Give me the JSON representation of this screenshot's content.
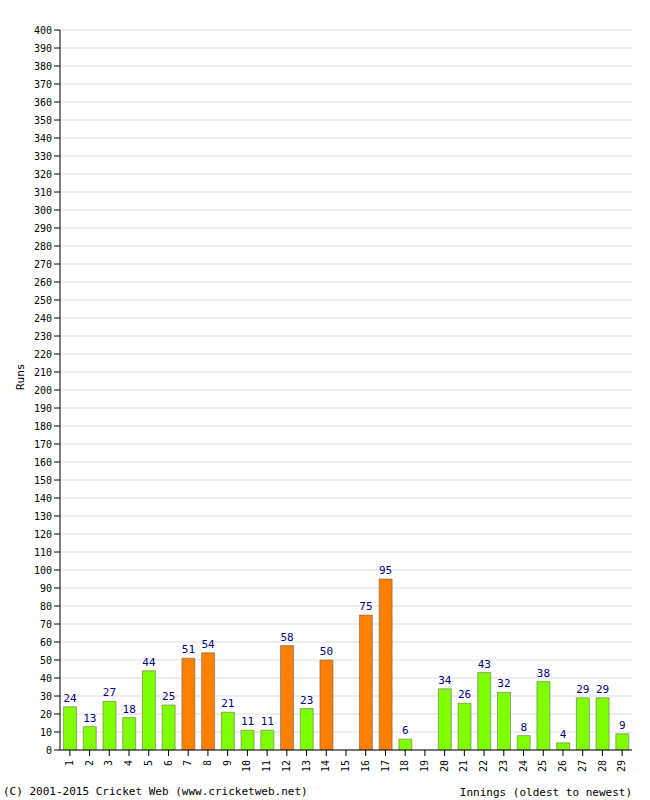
{
  "chart_data": {
    "type": "bar",
    "x_label": "Innings (oldest to newest)",
    "y_label": "Runs",
    "annotations": [
      "(C) 2001-2015 Cricket Web (www.cricketweb.net)"
    ],
    "categories": [
      "1",
      "2",
      "3",
      "4",
      "5",
      "6",
      "7",
      "8",
      "9",
      "10",
      "11",
      "12",
      "13",
      "14",
      "15",
      "16",
      "17",
      "18",
      "19",
      "20",
      "21",
      "22",
      "23",
      "24",
      "25",
      "26",
      "27",
      "28",
      "29"
    ],
    "values": [
      24,
      13,
      27,
      18,
      44,
      25,
      51,
      54,
      21,
      11,
      11,
      58,
      23,
      50,
      0,
      75,
      95,
      6,
      0,
      34,
      26,
      43,
      32,
      8,
      38,
      4,
      29,
      29,
      9
    ],
    "colors": [
      "#80ff00",
      "#80ff00",
      "#80ff00",
      "#80ff00",
      "#80ff00",
      "#80ff00",
      "#ff8000",
      "#ff8000",
      "#80ff00",
      "#80ff00",
      "#80ff00",
      "#ff8000",
      "#80ff00",
      "#ff8000",
      "#80ff00",
      "#ff8000",
      "#ff8000",
      "#80ff00",
      "#80ff00",
      "#80ff00",
      "#80ff00",
      "#80ff00",
      "#80ff00",
      "#80ff00",
      "#80ff00",
      "#80ff00",
      "#80ff00",
      "#80ff00",
      "#80ff00"
    ],
    "ylim": [
      0,
      400
    ],
    "yticks": [
      0,
      10,
      20,
      30,
      40,
      50,
      60,
      70,
      80,
      90,
      100,
      110,
      120,
      130,
      140,
      150,
      160,
      170,
      180,
      190,
      200,
      210,
      220,
      230,
      240,
      250,
      260,
      270,
      280,
      290,
      300,
      310,
      320,
      330,
      340,
      350,
      360,
      370,
      380,
      390,
      400
    ],
    "grid": true,
    "data_labels": true
  }
}
